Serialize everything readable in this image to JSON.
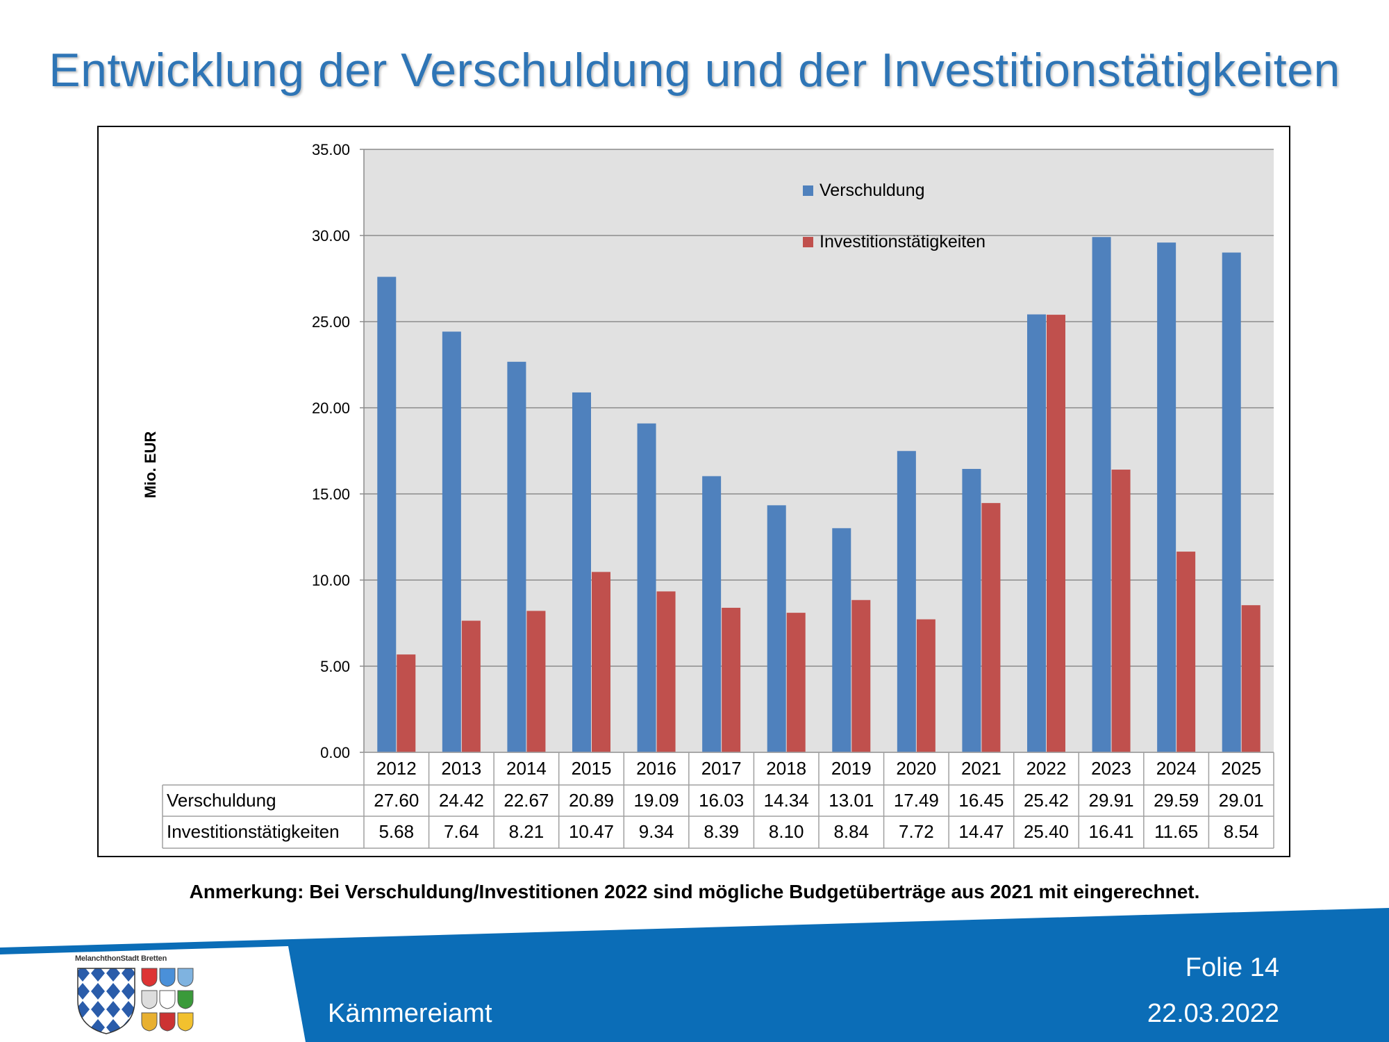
{
  "slide": {
    "title": "Entwicklung der Verschuldung und der Investitionstätigkeiten",
    "note": "Anmerkung: Bei Verschuldung/Investitionen 2022 sind mögliche Budgetüberträge aus 2021 mit eingerechnet.",
    "footer": {
      "department": "Kämmereiamt",
      "slide_number": "Folie 14",
      "date": "22.03.2022",
      "logo_text": "MelanchthonStadt Bretten"
    }
  },
  "colors": {
    "title": "#2e75b6",
    "series_verschuldung": "#4f81bd",
    "series_investition": "#c0504d",
    "plot_background": "#e1e1e1",
    "footer_blue": "#0b6db7"
  },
  "chart_data": {
    "type": "bar",
    "title": "",
    "xlabel": "",
    "ylabel": "Mio. EUR",
    "ylim": [
      0,
      35
    ],
    "yticks": [
      "0.00",
      "5.00",
      "10.00",
      "15.00",
      "20.00",
      "25.00",
      "30.00",
      "35.00"
    ],
    "grid": true,
    "legend_position": "top-right",
    "categories": [
      "2012",
      "2013",
      "2014",
      "2015",
      "2016",
      "2017",
      "2018",
      "2019",
      "2020",
      "2021",
      "2022",
      "2023",
      "2024",
      "2025"
    ],
    "series": [
      {
        "name": "Verschuldung",
        "values": [
          27.6,
          24.42,
          22.67,
          20.89,
          19.09,
          16.03,
          14.34,
          13.01,
          17.49,
          16.45,
          25.42,
          29.91,
          29.59,
          29.01
        ],
        "labels": [
          "27.60",
          "24.42",
          "22.67",
          "20.89",
          "19.09",
          "16.03",
          "14.34",
          "13.01",
          "17.49",
          "16.45",
          "25.42",
          "29.91",
          "29.59",
          "29.01"
        ]
      },
      {
        "name": "Investitionstätigkeiten",
        "values": [
          5.68,
          7.64,
          8.21,
          10.47,
          9.34,
          8.39,
          8.1,
          8.84,
          7.72,
          14.47,
          25.4,
          16.41,
          11.65,
          8.54
        ],
        "labels": [
          "5.68",
          "7.64",
          "8.21",
          "10.47",
          "9.34",
          "8.39",
          "8.10",
          "8.84",
          "7.72",
          "14.47",
          "25.40",
          "16.41",
          "11.65",
          "8.54"
        ]
      }
    ]
  }
}
